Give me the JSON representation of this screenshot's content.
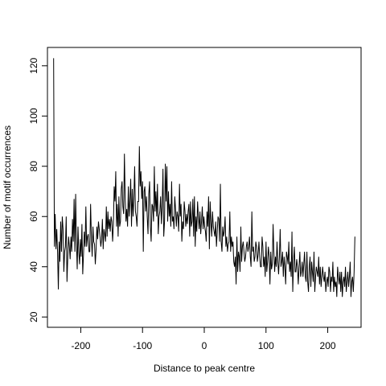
{
  "chart_data": {
    "type": "line",
    "title": "",
    "xlabel": "Distance to peak centre",
    "ylabel": "Number of motif occurrences",
    "xlim": [
      -254,
      254
    ],
    "ylim": [
      15.9,
      127.3
    ],
    "xticks": [
      -200,
      -100,
      0,
      100,
      200
    ],
    "xtick_labels": [
      "-200",
      "-100",
      "0",
      "100",
      "200"
    ],
    "yticks": [
      20,
      40,
      60,
      80,
      100,
      120
    ],
    "ytick_labels": [
      "20",
      "40",
      "60",
      "80",
      "100",
      "120"
    ],
    "grid": false,
    "line_color": "#000000",
    "x_range": [
      -244,
      244
    ],
    "y": [
      123,
      48,
      61,
      47,
      55,
      46,
      31,
      50,
      42,
      58,
      46,
      60,
      55,
      38,
      46,
      48,
      60,
      34,
      44,
      52,
      48,
      43,
      52,
      46,
      59,
      50,
      67,
      46,
      69,
      50,
      39,
      56,
      46,
      41,
      51,
      44,
      57,
      37,
      45,
      54,
      48,
      64,
      48,
      52,
      53,
      46,
      46,
      65,
      52,
      44,
      56,
      50,
      49,
      41,
      47,
      56,
      51,
      58,
      55,
      52,
      48,
      51,
      59,
      47,
      55,
      53,
      50,
      64,
      52,
      62,
      55,
      59,
      54,
      60,
      58,
      50,
      57,
      72,
      66,
      78,
      56,
      65,
      52,
      68,
      56,
      58,
      71,
      74,
      64,
      61,
      85,
      67,
      58,
      63,
      56,
      72,
      60,
      66,
      75,
      56,
      71,
      60,
      67,
      80,
      62,
      60,
      56,
      66,
      66,
      88,
      72,
      78,
      67,
      74,
      46,
      70,
      72,
      62,
      68,
      60,
      53,
      69,
      74,
      56,
      50,
      65,
      64,
      58,
      80,
      62,
      70,
      60,
      73,
      53,
      60,
      62,
      68,
      57,
      64,
      79,
      52,
      58,
      81,
      66,
      80,
      58,
      70,
      60,
      65,
      56,
      74,
      58,
      60,
      55,
      68,
      63,
      56,
      62,
      60,
      54,
      73,
      60,
      65,
      50,
      58,
      55,
      66,
      62,
      56,
      61,
      57,
      62,
      65,
      52,
      66,
      56,
      58,
      67,
      52,
      68,
      48,
      60,
      54,
      66,
      60,
      55,
      62,
      53,
      58,
      64,
      55,
      60,
      56,
      54,
      50,
      62,
      56,
      68,
      47,
      66,
      58,
      52,
      62,
      56,
      54,
      52,
      58,
      48,
      54,
      60,
      59,
      50,
      73,
      50,
      46,
      56,
      52,
      54,
      60,
      48,
      52,
      46,
      49,
      50,
      62,
      46,
      52,
      48,
      50,
      42,
      40,
      44,
      33,
      52,
      38,
      46,
      44,
      38,
      56,
      42,
      48,
      50,
      46,
      42,
      44,
      48,
      50,
      46,
      48,
      52,
      44,
      40,
      62,
      46,
      48,
      42,
      44,
      50,
      48,
      42,
      45,
      50,
      44,
      40,
      40,
      52,
      48,
      40,
      44,
      36,
      50,
      38,
      42,
      48,
      44,
      33,
      46,
      39,
      41,
      57,
      46,
      38,
      44,
      40,
      50,
      42,
      37,
      44,
      55,
      40,
      42,
      46,
      36,
      44,
      40,
      33,
      46,
      44,
      41,
      50,
      38,
      42,
      36,
      54,
      30,
      42,
      48,
      38,
      38,
      43,
      40,
      33,
      40,
      46,
      36,
      38,
      42,
      36,
      41,
      46,
      36,
      34,
      46,
      34,
      30,
      40,
      44,
      32,
      42,
      38,
      34,
      46,
      30,
      36,
      40,
      38,
      36,
      44,
      33,
      40,
      32,
      36,
      40,
      36,
      34,
      38,
      30,
      34,
      36,
      32,
      40,
      38,
      30,
      36,
      34,
      42,
      30,
      36,
      32,
      34,
      28,
      40,
      36,
      33,
      38,
      30,
      38,
      28,
      34,
      36,
      32,
      40,
      30,
      34,
      38,
      32,
      36,
      42,
      28,
      34,
      36,
      30,
      38,
      52
    ]
  }
}
